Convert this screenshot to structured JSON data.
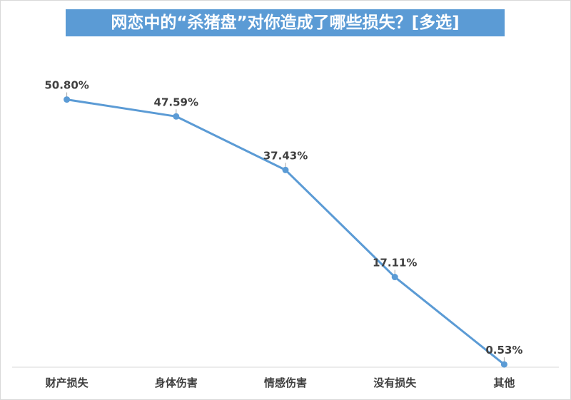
{
  "chart_data": {
    "type": "line",
    "title": "网恋中的“杀猪盘”对你造成了哪些损失？[多选]",
    "categories": [
      "财产损失",
      "身体伤害",
      "情感伤害",
      "没有损失",
      "其他"
    ],
    "values": [
      50.8,
      47.59,
      37.43,
      17.11,
      0.53
    ],
    "data_labels": [
      "50.80%",
      "47.59%",
      "37.43%",
      "17.11%",
      "0.53%"
    ],
    "line_color": "#5b9bd5",
    "grid": false,
    "legend": "none"
  }
}
